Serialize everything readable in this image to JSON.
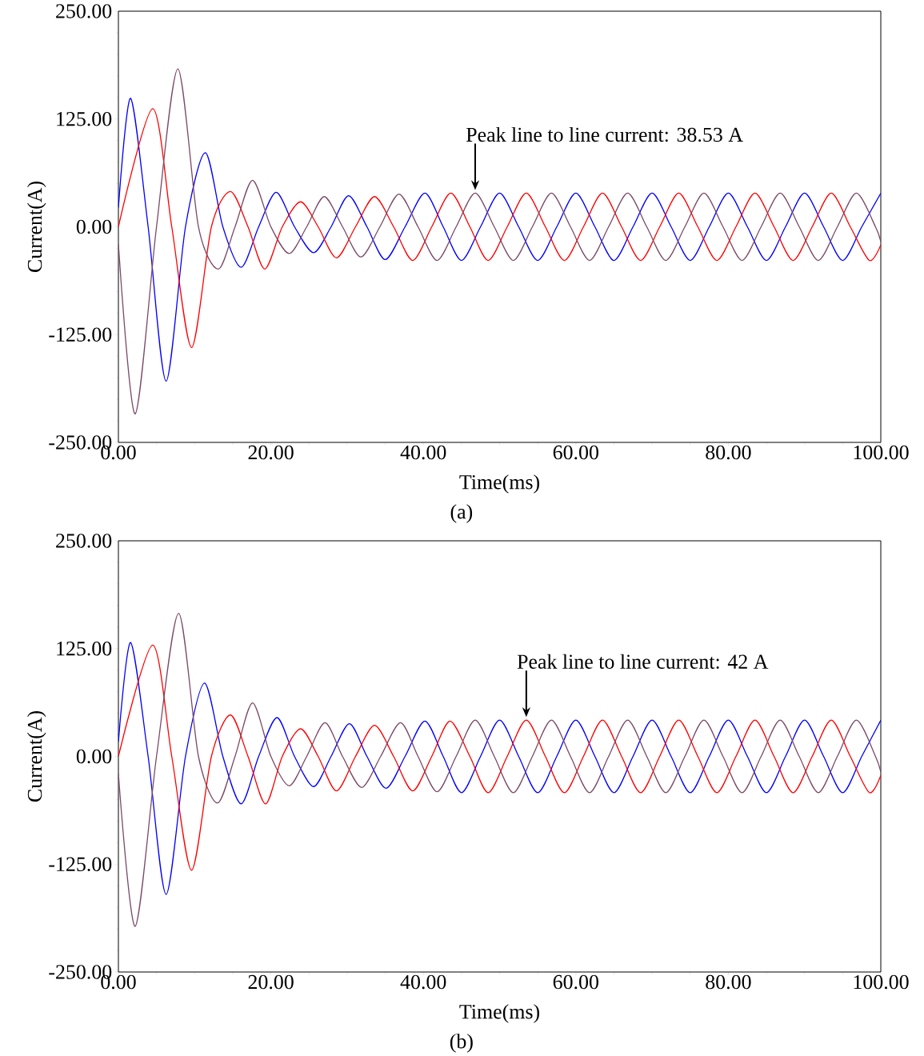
{
  "chart_data": [
    {
      "type": "line",
      "xlabel": "Time(ms)",
      "ylabel": "Current(A)",
      "xlim": [
        0,
        100
      ],
      "ylim": [
        -250,
        250
      ],
      "xticks": [
        {
          "value": 0,
          "label": "0.00"
        },
        {
          "value": 20,
          "label": "20.00"
        },
        {
          "value": 40,
          "label": "40.00"
        },
        {
          "value": 60,
          "label": "60.00"
        },
        {
          "value": 80,
          "label": "80.00"
        },
        {
          "value": 100,
          "label": "100.00"
        }
      ],
      "yticks": [
        {
          "value": -250,
          "label": "-250.00"
        },
        {
          "value": -125,
          "label": "-125.00"
        },
        {
          "value": 0,
          "label": "0.00"
        },
        {
          "value": 125,
          "label": "125.00"
        },
        {
          "value": 250,
          "label": "250.00"
        }
      ],
      "series": [
        {
          "color": "#0000ff",
          "x": [
            0,
            1.6,
            3.9,
            6.26,
            8.8,
            11.4,
            13.7,
            16.1,
            18.4,
            20.7,
            23.1,
            25.6,
            27.9,
            30.2,
            32.6,
            35.0,
            37.6,
            40.2,
            42.6,
            45,
            47.5,
            50,
            52.5,
            55,
            57.5,
            60,
            62.5,
            65,
            67.5,
            70,
            72.5,
            75,
            77.5,
            80,
            82.5,
            85,
            87.5,
            90,
            92.5,
            95,
            97.5,
            100
          ],
          "values": [
            22,
            149,
            0,
            -179,
            0,
            86,
            0,
            -47,
            0,
            40,
            0,
            -30,
            0,
            36,
            0,
            -38,
            0,
            39,
            0,
            -39,
            0,
            39,
            0,
            -39,
            0,
            39,
            0,
            -39,
            0,
            39,
            0,
            -39,
            0,
            39,
            0,
            -39,
            0,
            39,
            0,
            -39,
            0,
            39
          ]
        },
        {
          "color": "#ff0000",
          "x": [
            0,
            4.5,
            7.0,
            9.6,
            12.2,
            14.7,
            17.0,
            19.2,
            21.5,
            23.9,
            26.2,
            28.6,
            31.1,
            33.6,
            36.1,
            38.6,
            41.1,
            43.6,
            46.1,
            48.5,
            51,
            53.5,
            56,
            58.5,
            61,
            63.5,
            66,
            68.5,
            71,
            73.5,
            76,
            78.5,
            81,
            83.5,
            86,
            88.5,
            91,
            93.5,
            96,
            98.5,
            100
          ],
          "values": [
            0,
            137,
            0,
            -140,
            0,
            41,
            0,
            -49,
            0,
            29,
            0,
            -36,
            0,
            35,
            0,
            -39,
            0,
            39,
            0,
            -39,
            0,
            39,
            0,
            -39,
            0,
            39,
            0,
            -39,
            0,
            39,
            0,
            -39,
            0,
            39,
            0,
            -39,
            0,
            39,
            0,
            -39,
            -21
          ]
        },
        {
          "color": "#7b4a66",
          "x": [
            0,
            2.2,
            5.0,
            7.8,
            10.5,
            13.1,
            15.3,
            17.6,
            20.0,
            22.4,
            24.7,
            27.0,
            29.4,
            31.8,
            34.3,
            36.8,
            39.3,
            41.8,
            44.3,
            46.8,
            49.3,
            51.8,
            54.3,
            56.8,
            59.3,
            61.8,
            64.3,
            66.8,
            69.3,
            71.8,
            74.3,
            76.8,
            79.3,
            81.8,
            84.3,
            86.8,
            89.3,
            91.8,
            94.3,
            96.8,
            99.3,
            100
          ],
          "values": [
            -20,
            -217,
            0,
            183,
            0,
            -49,
            0,
            54,
            0,
            -31,
            0,
            35,
            0,
            -35,
            0,
            38,
            0,
            -39,
            0,
            39,
            0,
            -39,
            0,
            39,
            0,
            -39,
            0,
            39,
            0,
            -39,
            0,
            39,
            0,
            -39,
            0,
            39,
            0,
            -39,
            0,
            39,
            0,
            -17
          ]
        }
      ],
      "annotations": [
        {
          "text": "Peak line to line current: 38.53 A",
          "x": 46.8,
          "y": 39
        },
        "(a)"
      ]
    },
    {
      "type": "line",
      "xlabel": "Time(ms)",
      "ylabel": "Current(A)",
      "xlim": [
        0,
        100
      ],
      "ylim": [
        -250,
        250
      ],
      "xticks": [
        {
          "value": 0,
          "label": "0.00"
        },
        {
          "value": 20,
          "label": "20.00"
        },
        {
          "value": 40,
          "label": "40.00"
        },
        {
          "value": 60,
          "label": "60.00"
        },
        {
          "value": 80,
          "label": "80.00"
        },
        {
          "value": 100,
          "label": "100.00"
        }
      ],
      "yticks": [
        {
          "value": -250,
          "label": "-250.00"
        },
        {
          "value": -125,
          "label": "-125.00"
        },
        {
          "value": 0,
          "label": "0.00"
        },
        {
          "value": 125,
          "label": "125.00"
        },
        {
          "value": 250,
          "label": "250.00"
        }
      ],
      "series": [
        {
          "color": "#0000ff",
          "x": [
            0,
            1.6,
            3.9,
            6.26,
            8.8,
            11.3,
            13.7,
            16.1,
            18.4,
            20.8,
            23.1,
            25.6,
            27.9,
            30.3,
            32.6,
            35.1,
            37.6,
            40.2,
            42.6,
            45,
            47.5,
            50,
            52.5,
            55,
            57.5,
            60,
            62.5,
            65,
            67.5,
            70,
            72.5,
            75,
            77.5,
            80,
            82.5,
            85,
            87.5,
            90,
            92.5,
            95,
            97.5,
            100
          ],
          "values": [
            17,
            132,
            0,
            -160,
            0,
            85,
            0,
            -55,
            0,
            45,
            0,
            -35,
            0,
            38,
            0,
            -37,
            0,
            41,
            0,
            -42,
            0,
            42,
            0,
            -42,
            0,
            42,
            0,
            -42,
            0,
            42,
            0,
            -42,
            0,
            42,
            0,
            -42,
            0,
            42,
            0,
            -42,
            0,
            42
          ]
        },
        {
          "color": "#ff0000",
          "x": [
            0,
            4.5,
            7.0,
            9.6,
            12.2,
            14.7,
            17.0,
            19.3,
            21.5,
            23.9,
            26.2,
            28.6,
            31.1,
            33.6,
            36.1,
            38.6,
            41.1,
            43.5,
            46.1,
            48.5,
            51,
            53.5,
            56,
            58.5,
            61,
            63.5,
            66,
            68.5,
            71,
            73.5,
            76,
            78.5,
            81,
            83.5,
            86,
            88.5,
            91,
            93.5,
            96,
            98.5,
            100
          ],
          "values": [
            0,
            129,
            0,
            -132,
            0,
            48,
            0,
            -55,
            0,
            32,
            0,
            -40,
            0,
            36,
            0,
            -40,
            0,
            41,
            0,
            -42,
            0,
            42,
            0,
            -42,
            0,
            42,
            0,
            -42,
            0,
            42,
            0,
            -42,
            0,
            42,
            0,
            -42,
            0,
            42,
            0,
            -42,
            -22
          ]
        },
        {
          "color": "#7b4a66",
          "x": [
            0,
            2.2,
            5.0,
            7.9,
            10.5,
            13.0,
            15.3,
            17.6,
            20.0,
            22.4,
            24.7,
            27.1,
            29.4,
            31.9,
            34.4,
            37.0,
            39.3,
            41.8,
            44.3,
            46.8,
            49.3,
            51.8,
            54.3,
            56.8,
            59.3,
            61.8,
            64.3,
            66.8,
            69.3,
            71.8,
            74.3,
            76.8,
            79.3,
            81.8,
            84.3,
            86.8,
            89.3,
            91.8,
            94.3,
            96.8,
            99.3,
            100
          ],
          "values": [
            -20,
            -197,
            0,
            166,
            0,
            -54,
            0,
            62,
            0,
            -34,
            0,
            39,
            0,
            -36,
            0,
            39,
            0,
            -41,
            0,
            42,
            0,
            -42,
            0,
            42,
            0,
            -42,
            0,
            42,
            0,
            -42,
            0,
            42,
            0,
            -42,
            0,
            42,
            0,
            -42,
            0,
            42,
            0,
            -18
          ]
        }
      ],
      "annotations": [
        {
          "text": "Peak line to line current: 42 A",
          "x": 53.5,
          "y": 42
        },
        "(b)"
      ]
    }
  ]
}
